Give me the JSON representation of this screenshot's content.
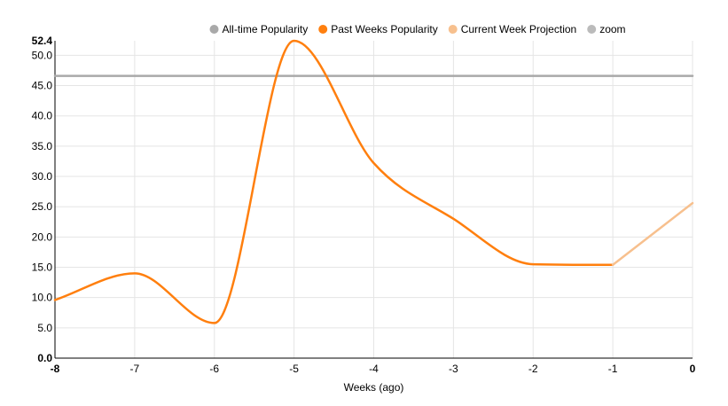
{
  "chart_data": {
    "type": "line",
    "xlabel": "Weeks (ago)",
    "ylabel": "",
    "xlim": [
      -8,
      0
    ],
    "ylim": [
      0,
      52.4
    ],
    "x_ticks": [
      "-8",
      "-7",
      "-6",
      "-5",
      "-4",
      "-3",
      "-2",
      "-1",
      "0"
    ],
    "y_ticks": [
      "0.0",
      "5.0",
      "10.0",
      "15.0",
      "20.0",
      "25.0",
      "30.0",
      "35.0",
      "40.0",
      "45.0",
      "50.0",
      "52.4"
    ],
    "grid": true,
    "legend_position": "top-right",
    "legend": [
      {
        "label": "All-time Popularity",
        "color": "#a9a9a9"
      },
      {
        "label": "Past Weeks Popularity",
        "color": "#ff7f0e"
      },
      {
        "label": "Current Week Projection",
        "color": "#f7c08e"
      },
      {
        "label": "zoom",
        "color": "#bbbbbb"
      }
    ],
    "series": [
      {
        "name": "All-time Popularity",
        "color": "#a9a9a9",
        "points": [
          [
            -8,
            46.6
          ],
          [
            0,
            46.6
          ]
        ]
      },
      {
        "name": "Past Weeks Popularity",
        "color": "#ff7f0e",
        "points": [
          [
            -8,
            9.6
          ],
          [
            -7,
            14
          ],
          [
            -6,
            5.8
          ],
          [
            -5,
            52.4
          ],
          [
            -4,
            32.2
          ],
          [
            -3,
            23
          ],
          [
            -2,
            15.5
          ],
          [
            -1,
            15.4
          ]
        ]
      },
      {
        "name": "Current Week Projection",
        "color": "#f7c08e",
        "points": [
          [
            -1,
            15.4
          ],
          [
            0,
            25.6
          ]
        ]
      }
    ]
  }
}
